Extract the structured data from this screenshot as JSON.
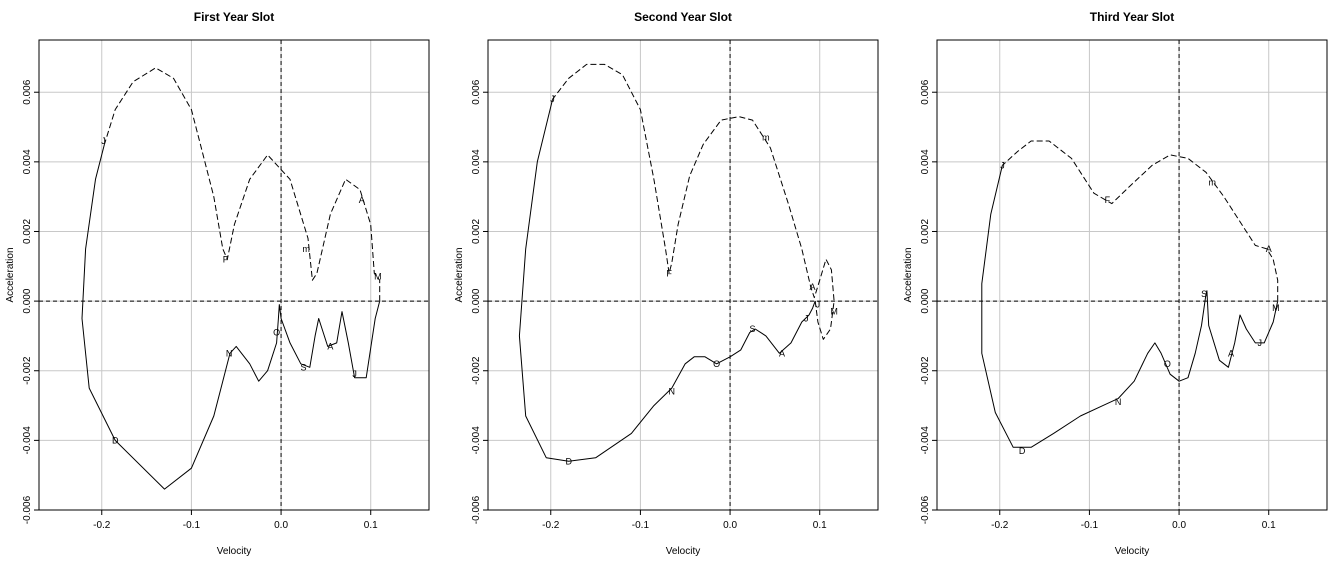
{
  "chart_data": [
    {
      "type": "line",
      "title": "First Year Slot",
      "xlabel": "Velocity",
      "ylabel": "Acceleration",
      "xlim": [
        -0.27,
        0.165
      ],
      "ylim": [
        -0.006,
        0.0075
      ],
      "x_ticks": [
        -0.2,
        -0.1,
        0.0,
        0.1
      ],
      "x_tick_labels": [
        "-0.2",
        "-0.1",
        "0.0",
        "0.1"
      ],
      "y_ticks": [
        -0.006,
        -0.004,
        -0.002,
        0.0,
        0.002,
        0.004,
        0.006
      ],
      "y_tick_labels": [
        "-0.006",
        "-0.004",
        "-0.002",
        "0.000",
        "0.002",
        "0.004",
        "0.006"
      ],
      "grid": true,
      "zero_lines": "dashed",
      "series": [
        {
          "style": "solid",
          "points": [
            [
              -0.197,
              0.0045
            ],
            [
              -0.207,
              0.0035
            ],
            [
              -0.218,
              0.0015
            ],
            [
              -0.222,
              -0.0005
            ],
            [
              -0.214,
              -0.0025
            ],
            [
              -0.185,
              -0.004
            ],
            [
              -0.13,
              -0.0054
            ],
            [
              -0.1,
              -0.0048
            ],
            [
              -0.075,
              -0.0033
            ],
            [
              -0.057,
              -0.0015
            ],
            [
              -0.05,
              -0.0013
            ],
            [
              -0.035,
              -0.0018
            ],
            [
              -0.025,
              -0.0023
            ],
            [
              -0.015,
              -0.002
            ],
            [
              -0.005,
              -0.0012
            ],
            [
              -0.003,
              -0.0005
            ],
            [
              -0.002,
              -0.0001
            ],
            [
              0.0,
              -0.0005
            ],
            [
              0.01,
              -0.0012
            ],
            [
              0.022,
              -0.0018
            ],
            [
              0.032,
              -0.0019
            ],
            [
              0.038,
              -0.001
            ],
            [
              0.042,
              -0.0005
            ],
            [
              0.052,
              -0.0013
            ],
            [
              0.062,
              -0.0012
            ],
            [
              0.068,
              -0.0003
            ],
            [
              0.075,
              -0.0012
            ],
            [
              0.082,
              -0.0022
            ],
            [
              0.095,
              -0.0022
            ],
            [
              0.105,
              -0.0005
            ],
            [
              0.11,
              0.0
            ]
          ]
        },
        {
          "style": "dashed",
          "points": [
            [
              0.11,
              0.0
            ],
            [
              0.11,
              0.0006
            ],
            [
              0.104,
              0.0008
            ],
            [
              0.1,
              0.0022
            ],
            [
              0.088,
              0.0032
            ],
            [
              0.072,
              0.0035
            ],
            [
              0.055,
              0.0025
            ],
            [
              0.04,
              0.0008
            ],
            [
              0.035,
              0.0006
            ],
            [
              0.03,
              0.0018
            ],
            [
              0.01,
              0.0035
            ],
            [
              -0.015,
              0.0042
            ],
            [
              -0.035,
              0.0035
            ],
            [
              -0.052,
              0.0022
            ],
            [
              -0.06,
              0.0012
            ],
            [
              -0.065,
              0.0015
            ],
            [
              -0.075,
              0.003
            ],
            [
              -0.09,
              0.0045
            ],
            [
              -0.1,
              0.0055
            ],
            [
              -0.12,
              0.0064
            ],
            [
              -0.14,
              0.0067
            ],
            [
              -0.165,
              0.0063
            ],
            [
              -0.185,
              0.0055
            ],
            [
              -0.197,
              0.0045
            ]
          ]
        }
      ],
      "annotations": [
        {
          "text": "J",
          "x": -0.198,
          "y": 0.0046
        },
        {
          "text": "D",
          "x": -0.185,
          "y": -0.004
        },
        {
          "text": "N",
          "x": -0.058,
          "y": -0.0015
        },
        {
          "text": "O",
          "x": -0.005,
          "y": -0.0009
        },
        {
          "text": "S",
          "x": 0.025,
          "y": -0.0019
        },
        {
          "text": "A",
          "x": 0.055,
          "y": -0.0013
        },
        {
          "text": "J",
          "x": 0.082,
          "y": -0.0021
        },
        {
          "text": "F",
          "x": -0.062,
          "y": 0.0012
        },
        {
          "text": "m",
          "x": 0.028,
          "y": 0.0015
        },
        {
          "text": "A",
          "x": 0.09,
          "y": 0.0029
        },
        {
          "text": "M",
          "x": 0.108,
          "y": 0.0007
        }
      ]
    },
    {
      "type": "line",
      "title": "Second Year Slot",
      "xlabel": "Velocity",
      "ylabel": "Acceleration",
      "xlim": [
        -0.27,
        0.165
      ],
      "ylim": [
        -0.006,
        0.0075
      ],
      "x_ticks": [
        -0.2,
        -0.1,
        0.0,
        0.1
      ],
      "x_tick_labels": [
        "-0.2",
        "-0.1",
        "0.0",
        "0.1"
      ],
      "y_ticks": [
        -0.006,
        -0.004,
        -0.002,
        0.0,
        0.002,
        0.004,
        0.006
      ],
      "y_tick_labels": [
        "-0.006",
        "-0.004",
        "-0.002",
        "0.000",
        "0.002",
        "0.004",
        "0.006"
      ],
      "grid": true,
      "zero_lines": "dashed",
      "series": [
        {
          "style": "solid",
          "points": [
            [
              -0.198,
              0.0058
            ],
            [
              -0.215,
              0.004
            ],
            [
              -0.228,
              0.0015
            ],
            [
              -0.235,
              -0.001
            ],
            [
              -0.228,
              -0.0033
            ],
            [
              -0.205,
              -0.0045
            ],
            [
              -0.18,
              -0.0046
            ],
            [
              -0.15,
              -0.0045
            ],
            [
              -0.11,
              -0.0038
            ],
            [
              -0.085,
              -0.003
            ],
            [
              -0.065,
              -0.0025
            ],
            [
              -0.05,
              -0.0018
            ],
            [
              -0.04,
              -0.0016
            ],
            [
              -0.028,
              -0.0016
            ],
            [
              -0.015,
              -0.0018
            ],
            [
              0.0,
              -0.0016
            ],
            [
              0.012,
              -0.0014
            ],
            [
              0.022,
              -0.0009
            ],
            [
              0.028,
              -0.0008
            ],
            [
              0.04,
              -0.001
            ],
            [
              0.055,
              -0.0015
            ],
            [
              0.068,
              -0.0012
            ],
            [
              0.08,
              -0.0006
            ],
            [
              0.088,
              -0.0004
            ],
            [
              0.092,
              -0.0002
            ],
            [
              0.095,
              0.0
            ]
          ]
        },
        {
          "style": "dashed",
          "points": [
            [
              0.095,
              0.0
            ],
            [
              0.098,
              -0.0006
            ],
            [
              0.104,
              -0.0011
            ],
            [
              0.112,
              -0.0008
            ],
            [
              0.116,
              0.0
            ],
            [
              0.113,
              0.0009
            ],
            [
              0.107,
              0.0012
            ],
            [
              0.1,
              0.0006
            ],
            [
              0.094,
              0.0001
            ],
            [
              0.09,
              0.0004
            ],
            [
              0.08,
              0.0015
            ],
            [
              0.065,
              0.0028
            ],
            [
              0.045,
              0.0044
            ],
            [
              0.025,
              0.0052
            ],
            [
              0.01,
              0.0053
            ],
            [
              -0.01,
              0.0052
            ],
            [
              -0.03,
              0.0045
            ],
            [
              -0.045,
              0.0036
            ],
            [
              -0.058,
              0.0022
            ],
            [
              -0.065,
              0.0011
            ],
            [
              -0.068,
              0.0008
            ],
            [
              -0.072,
              0.0015
            ],
            [
              -0.085,
              0.0035
            ],
            [
              -0.1,
              0.0055
            ],
            [
              -0.12,
              0.0065
            ],
            [
              -0.14,
              0.0068
            ],
            [
              -0.16,
              0.0068
            ],
            [
              -0.18,
              0.0064
            ],
            [
              -0.198,
              0.0058
            ]
          ]
        }
      ],
      "annotations": [
        {
          "text": "J",
          "x": -0.198,
          "y": 0.0058
        },
        {
          "text": "D",
          "x": -0.18,
          "y": -0.0046
        },
        {
          "text": "N",
          "x": -0.065,
          "y": -0.0026
        },
        {
          "text": "O",
          "x": -0.015,
          "y": -0.0018
        },
        {
          "text": "S",
          "x": 0.025,
          "y": -0.0008
        },
        {
          "text": "A",
          "x": 0.058,
          "y": -0.0015
        },
        {
          "text": "J",
          "x": 0.085,
          "y": -0.0005
        },
        {
          "text": "F",
          "x": -0.068,
          "y": 0.0008
        },
        {
          "text": "m",
          "x": 0.04,
          "y": 0.0047
        },
        {
          "text": "A",
          "x": 0.092,
          "y": 0.0004
        },
        {
          "text": "J",
          "x": 0.098,
          "y": -0.0001
        },
        {
          "text": "M",
          "x": 0.116,
          "y": -0.0003
        }
      ]
    },
    {
      "type": "line",
      "title": "Third Year Slot",
      "xlabel": "Velocity",
      "ylabel": "Acceleration",
      "xlim": [
        -0.27,
        0.165
      ],
      "ylim": [
        -0.006,
        0.0075
      ],
      "x_ticks": [
        -0.2,
        -0.1,
        0.0,
        0.1
      ],
      "x_tick_labels": [
        "-0.2",
        "-0.1",
        "0.0",
        "0.1"
      ],
      "y_ticks": [
        -0.006,
        -0.004,
        -0.002,
        0.0,
        0.002,
        0.004,
        0.006
      ],
      "y_tick_labels": [
        "-0.006",
        "-0.004",
        "-0.002",
        "0.000",
        "0.002",
        "0.004",
        "0.006"
      ],
      "grid": true,
      "zero_lines": "dashed",
      "series": [
        {
          "style": "solid",
          "points": [
            [
              -0.197,
              0.0039
            ],
            [
              -0.21,
              0.0025
            ],
            [
              -0.22,
              0.0005
            ],
            [
              -0.22,
              -0.0015
            ],
            [
              -0.205,
              -0.0032
            ],
            [
              -0.185,
              -0.0042
            ],
            [
              -0.165,
              -0.0042
            ],
            [
              -0.14,
              -0.0038
            ],
            [
              -0.11,
              -0.0033
            ],
            [
              -0.085,
              -0.003
            ],
            [
              -0.068,
              -0.0028
            ],
            [
              -0.05,
              -0.0023
            ],
            [
              -0.035,
              -0.0015
            ],
            [
              -0.027,
              -0.0012
            ],
            [
              -0.02,
              -0.0015
            ],
            [
              -0.01,
              -0.0021
            ],
            [
              0.0,
              -0.0023
            ],
            [
              0.01,
              -0.0022
            ],
            [
              0.018,
              -0.0015
            ],
            [
              0.025,
              -0.0007
            ],
            [
              0.03,
              0.0002
            ],
            [
              0.031,
              0.0003
            ],
            [
              0.033,
              -0.0007
            ],
            [
              0.045,
              -0.0017
            ],
            [
              0.055,
              -0.0019
            ],
            [
              0.062,
              -0.0012
            ],
            [
              0.068,
              -0.0004
            ],
            [
              0.075,
              -0.0008
            ],
            [
              0.085,
              -0.0012
            ],
            [
              0.095,
              -0.0012
            ],
            [
              0.105,
              -0.0006
            ],
            [
              0.11,
              0.0
            ]
          ]
        },
        {
          "style": "dashed",
          "points": [
            [
              0.11,
              0.0
            ],
            [
              0.11,
              0.0006
            ],
            [
              0.105,
              0.0012
            ],
            [
              0.098,
              0.0015
            ],
            [
              0.085,
              0.0016
            ],
            [
              0.07,
              0.0022
            ],
            [
              0.05,
              0.003
            ],
            [
              0.03,
              0.0037
            ],
            [
              0.01,
              0.0041
            ],
            [
              -0.01,
              0.0042
            ],
            [
              -0.03,
              0.0039
            ],
            [
              -0.055,
              0.0033
            ],
            [
              -0.075,
              0.0028
            ],
            [
              -0.095,
              0.0031
            ],
            [
              -0.12,
              0.0041
            ],
            [
              -0.145,
              0.0046
            ],
            [
              -0.165,
              0.0046
            ],
            [
              -0.18,
              0.0043
            ],
            [
              -0.197,
              0.0039
            ]
          ]
        }
      ],
      "annotations": [
        {
          "text": "J",
          "x": -0.197,
          "y": 0.0039
        },
        {
          "text": "D",
          "x": -0.175,
          "y": -0.0043
        },
        {
          "text": "N",
          "x": -0.068,
          "y": -0.0029
        },
        {
          "text": "O",
          "x": -0.013,
          "y": -0.0018
        },
        {
          "text": "S",
          "x": 0.028,
          "y": 0.0002
        },
        {
          "text": "A",
          "x": 0.058,
          "y": -0.0015
        },
        {
          "text": "J",
          "x": 0.09,
          "y": -0.0012
        },
        {
          "text": "F",
          "x": -0.08,
          "y": 0.0029
        },
        {
          "text": "m",
          "x": 0.037,
          "y": 0.0034
        },
        {
          "text": "A",
          "x": 0.1,
          "y": 0.0015
        },
        {
          "text": "M",
          "x": 0.108,
          "y": -0.0002
        }
      ]
    }
  ]
}
